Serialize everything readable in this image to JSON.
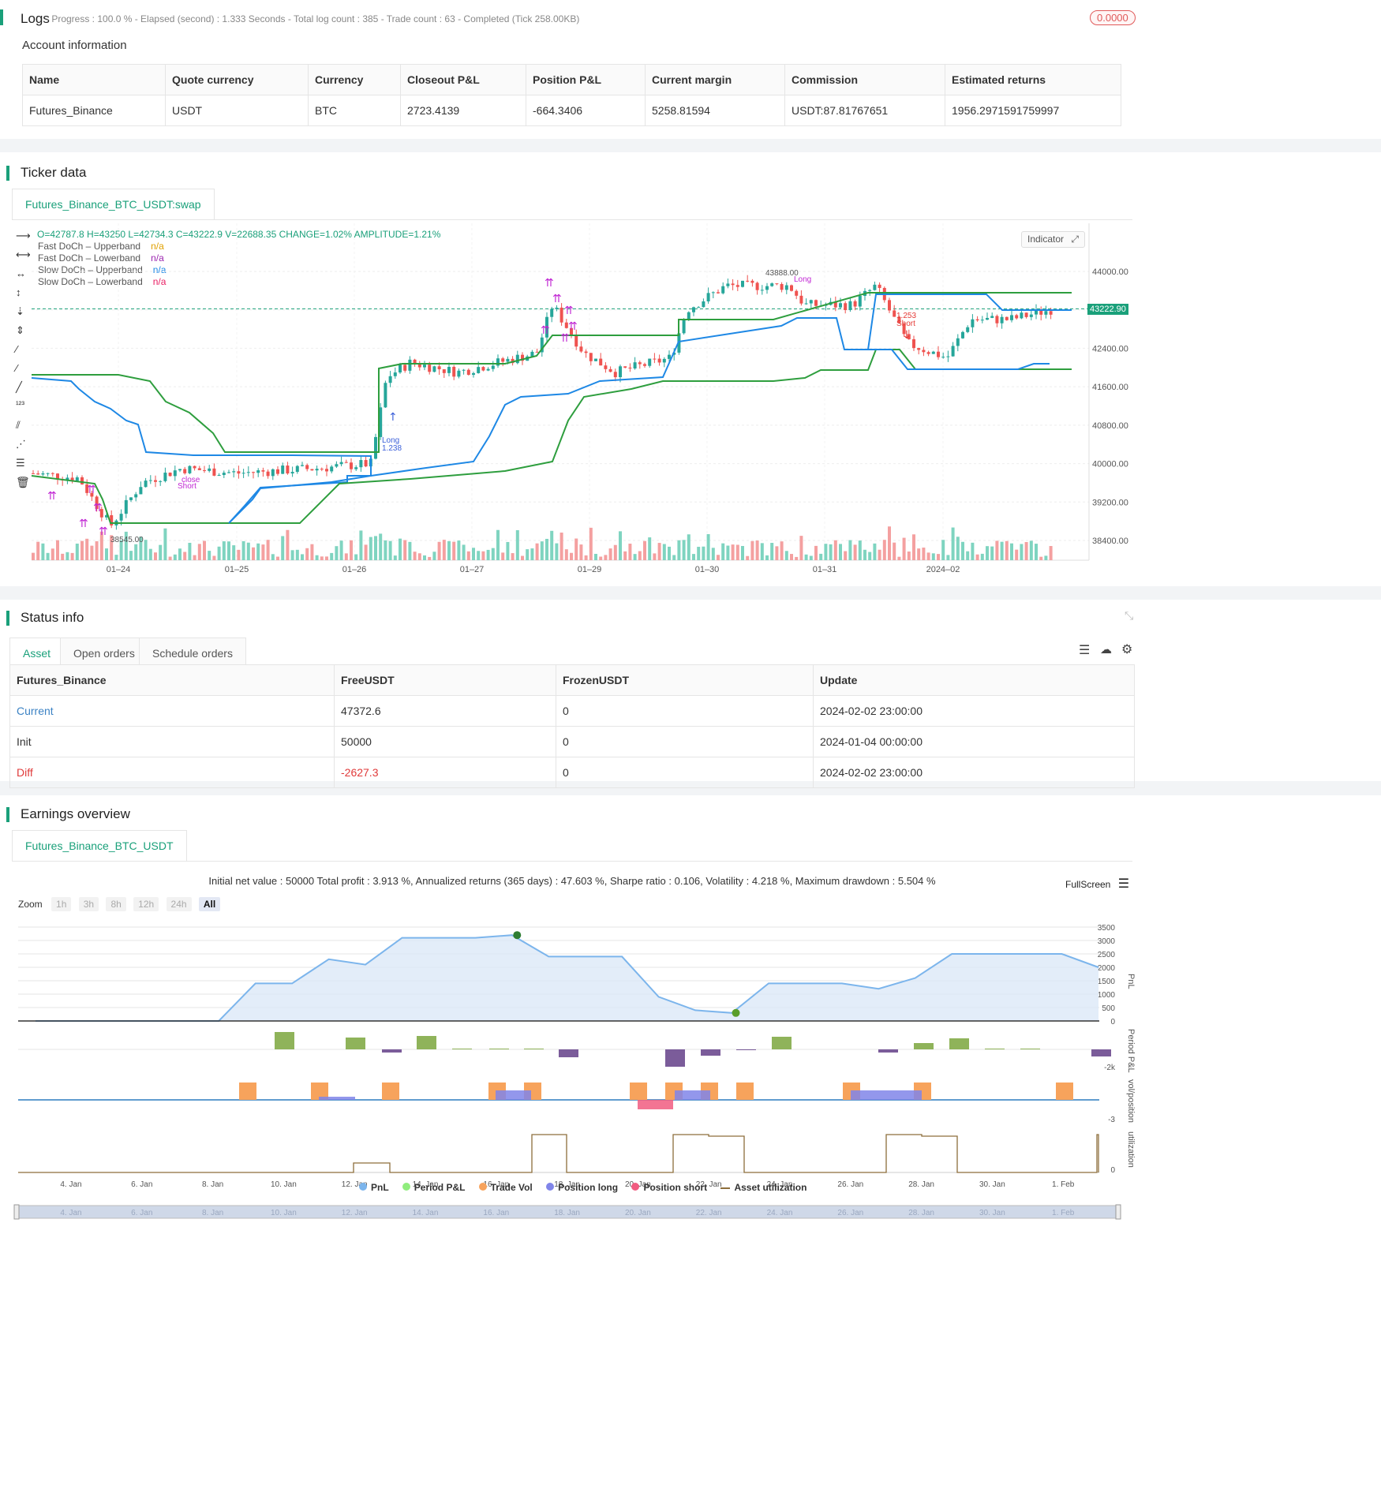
{
  "logs": {
    "title": "Logs",
    "summary": "- Progress : 100.0 % - Elapsed (second) : 1.333  Seconds - Total log count : 385 - Trade count : 63 - Completed (Tick 258.00KB)",
    "badge": "0.0000"
  },
  "account": {
    "title": "Account information",
    "columns": [
      "Name",
      "Quote currency",
      "Currency",
      "Closeout P&L",
      "Position P&L",
      "Current margin",
      "Commission",
      "Estimated returns"
    ],
    "row": [
      "Futures_Binance",
      "USDT",
      "BTC",
      "2723.4139",
      "-664.3406",
      "5258.81594",
      "USDT:87.81767651",
      "1956.2971591759997"
    ]
  },
  "ticker": {
    "title": "Ticker data",
    "tab": "Futures_Binance_BTC_USDT:swap",
    "ohlc": "O=42787.8 H=43250 L=42734.3 C=43222.9 V=22688.35 CHANGE=1.02% AMPLITUDE=1.21%",
    "legend": [
      {
        "name": "Fast DoCh – Upperband",
        "value": "n/a",
        "color": "#e0a000"
      },
      {
        "name": "Fast DoCh – Lowerband",
        "value": "n/a",
        "color": "#9c27b0"
      },
      {
        "name": "Slow DoCh – Upperband",
        "value": "n/a",
        "color": "#1e88e5"
      },
      {
        "name": "Slow DoCh – Lowerband",
        "value": "n/a",
        "color": "#e91e63"
      }
    ],
    "indicator_btn": "Indicator",
    "last_price": "43222.90",
    "price_ticks": [
      "44000.00",
      "43200.00",
      "42400.00",
      "41600.00",
      "40800.00",
      "40000.00",
      "39200.00",
      "38400.00"
    ],
    "date_ticks": [
      "01–24",
      "01–25",
      "01–26",
      "01–27",
      "01–29",
      "01–30",
      "01–31",
      "2024–02"
    ],
    "annotations": {
      "high": "43888.00",
      "low": "38545.00",
      "long1": "Long",
      "long1_val": "1.238",
      "short1": "Short",
      "short1_val": "1.253",
      "close": "close",
      "short2": "Short",
      "long2": "Long"
    }
  },
  "status": {
    "title": "Status info",
    "tabs": [
      "Asset",
      "Open orders",
      "Schedule orders"
    ],
    "columns": [
      "Futures_Binance",
      "FreeUSDT",
      "FrozenUSDT",
      "Update"
    ],
    "rows": [
      [
        "Current",
        "47372.6",
        "0",
        "2024-02-02 23:00:00"
      ],
      [
        "Init",
        "50000",
        "0",
        "2024-01-04 00:00:00"
      ],
      [
        "Diff",
        "-2627.3",
        "0",
        "2024-02-02 23:00:00"
      ]
    ]
  },
  "earnings": {
    "title": "Earnings overview",
    "tab": "Futures_Binance_BTC_USDT",
    "summary": "Initial net value : 50000 Total profit : 3.913 %, Annualized returns (365 days) : 47.603 %, Sharpe ratio : 0.106, Volatility : 4.218 %, Maximum drawdown : 5.504 %",
    "fullscreen": "FullScreen",
    "zoom_label": "Zoom",
    "zoom_options": [
      "1h",
      "3h",
      "8h",
      "12h",
      "24h",
      "All"
    ],
    "pnl_ticks": [
      "3500",
      "3000",
      "2500",
      "2000",
      "1500",
      "1000",
      "500",
      "0"
    ],
    "axis_titles": [
      "PnL",
      "Period P&L",
      "vol/position",
      "utilization"
    ],
    "period_tick": "-2k",
    "vol_tick": "-3",
    "util_tick": "0",
    "date_ticks": [
      "4. Jan",
      "6. Jan",
      "8. Jan",
      "10. Jan",
      "12. Jan",
      "14. Jan",
      "16. Jan",
      "18. Jan",
      "20. Jan",
      "22. Jan",
      "24. Jan",
      "26. Jan",
      "28. Jan",
      "30. Jan",
      "1. Feb"
    ],
    "legend": [
      {
        "name": "PnL",
        "color": "#7cb5ec"
      },
      {
        "name": "Period P&L",
        "color": "#90ed7d"
      },
      {
        "name": "Trade Vol",
        "color": "#f7a35c"
      },
      {
        "name": "Position long",
        "color": "#8085e9"
      },
      {
        "name": "Position short",
        "color": "#f15c80"
      },
      {
        "name": "Asset utilization",
        "color": "#8d6e3b"
      }
    ]
  },
  "chart_data": {
    "type": "area",
    "x": [
      "4. Jan",
      "5. Jan",
      "6. Jan",
      "7. Jan",
      "8. Jan",
      "9. Jan",
      "10. Jan",
      "11. Jan",
      "12. Jan",
      "13. Jan",
      "14. Jan",
      "15. Jan",
      "16. Jan",
      "17. Jan",
      "18. Jan",
      "19. Jan",
      "20. Jan",
      "21. Jan",
      "22. Jan",
      "23. Jan",
      "24. Jan",
      "25. Jan",
      "26. Jan",
      "27. Jan",
      "28. Jan",
      "29. Jan",
      "30. Jan",
      "31. Jan",
      "1. Feb",
      "2. Feb"
    ],
    "series": [
      {
        "name": "PnL",
        "values": [
          0,
          0,
          0,
          0,
          0,
          0,
          1400,
          1400,
          2300,
          2100,
          3100,
          3100,
          3100,
          3200,
          2400,
          2400,
          2400,
          900,
          400,
          300,
          1400,
          1400,
          1400,
          1200,
          1600,
          2500,
          2500,
          2500,
          2500,
          2000
        ]
      }
    ],
    "ylim": [
      0,
      3500
    ]
  }
}
